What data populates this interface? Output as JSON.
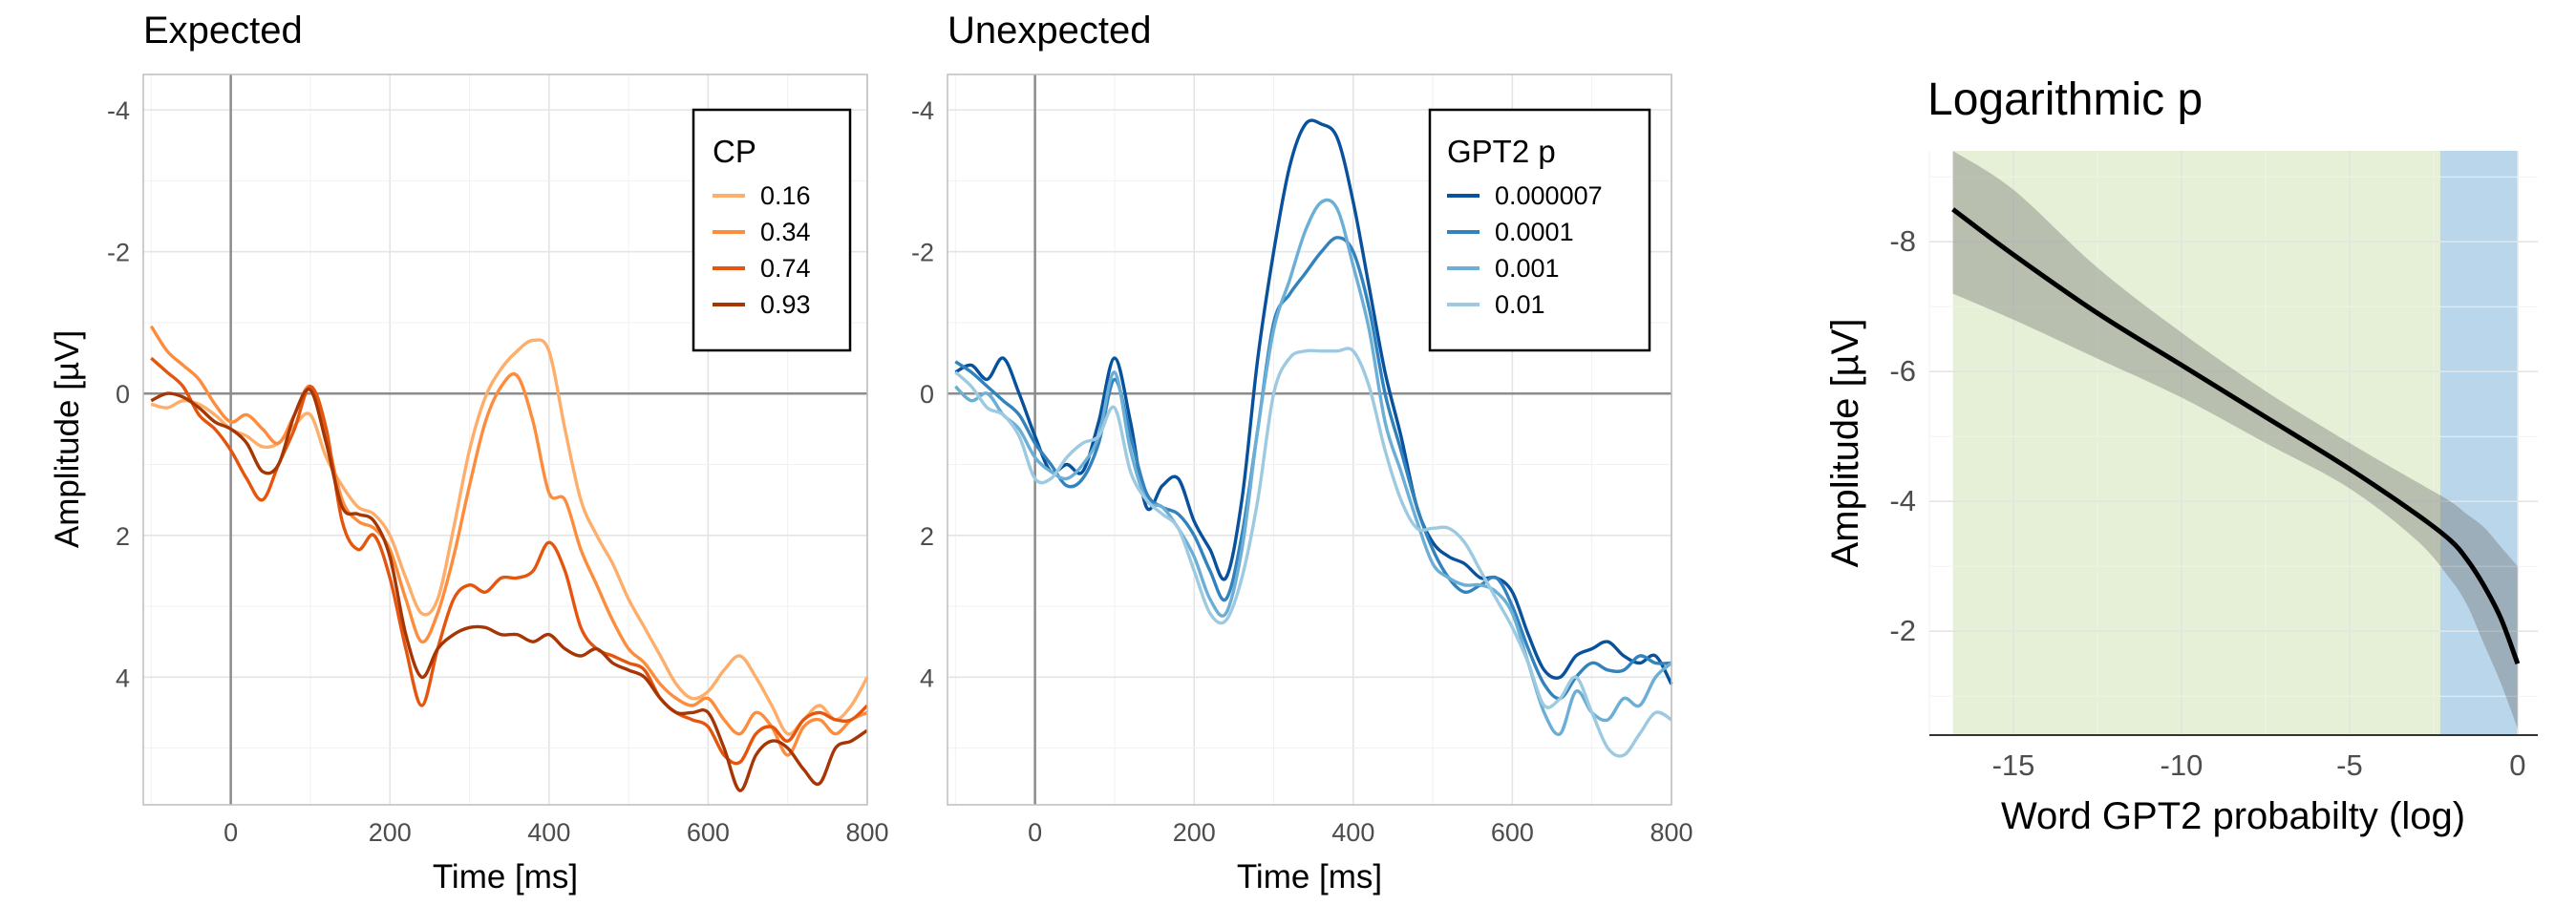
{
  "chart_data": [
    {
      "panel": "expected",
      "type": "line",
      "title": "Expected",
      "xlabel": "Time [ms]",
      "ylabel": "Amplitude [µV]",
      "xlim": [
        -110,
        800
      ],
      "ylim": [
        -4.5,
        5.8
      ],
      "y_reversed": true,
      "xticks": [
        0,
        200,
        400,
        600,
        800
      ],
      "yticks": [
        -4,
        -2,
        0,
        2,
        4
      ],
      "grid": true,
      "legend": {
        "title": "CP",
        "position": "top-right"
      },
      "series": [
        {
          "name": "0.16",
          "color": "#fdae6b",
          "x": [
            -100,
            -80,
            -60,
            -40,
            -20,
            0,
            20,
            40,
            60,
            80,
            100,
            120,
            140,
            160,
            180,
            200,
            220,
            240,
            260,
            280,
            300,
            320,
            340,
            360,
            380,
            400,
            420,
            440,
            460,
            480,
            500,
            520,
            540,
            560,
            580,
            600,
            620,
            640,
            660,
            680,
            700,
            720,
            740,
            760,
            780,
            800
          ],
          "y": [
            0.15,
            0.2,
            0.1,
            0.15,
            0.3,
            0.5,
            0.6,
            0.75,
            0.7,
            0.45,
            0.3,
            0.9,
            1.3,
            1.6,
            1.7,
            2.0,
            2.6,
            3.1,
            2.9,
            1.9,
            0.8,
            0.05,
            -0.35,
            -0.6,
            -0.75,
            -0.6,
            0.5,
            1.5,
            2.0,
            2.4,
            2.9,
            3.3,
            3.7,
            4.1,
            4.3,
            4.2,
            3.9,
            3.7,
            4.0,
            4.4,
            4.8,
            4.6,
            4.4,
            4.6,
            4.4,
            4.0
          ]
        },
        {
          "name": "0.34",
          "color": "#fd8d3c",
          "x": [
            -100,
            -80,
            -60,
            -40,
            -20,
            0,
            20,
            40,
            60,
            80,
            100,
            120,
            140,
            160,
            180,
            200,
            220,
            240,
            260,
            280,
            300,
            320,
            340,
            360,
            380,
            400,
            420,
            440,
            460,
            480,
            500,
            520,
            540,
            560,
            580,
            600,
            620,
            640,
            660,
            680,
            700,
            720,
            740,
            760,
            780,
            800
          ],
          "y": [
            -0.95,
            -0.6,
            -0.4,
            -0.2,
            0.15,
            0.4,
            0.3,
            0.5,
            0.7,
            0.3,
            -0.1,
            0.6,
            1.5,
            1.8,
            1.9,
            2.2,
            2.9,
            3.5,
            3.1,
            2.3,
            1.3,
            0.4,
            -0.1,
            -0.25,
            0.4,
            1.4,
            1.5,
            2.2,
            2.7,
            3.2,
            3.6,
            3.8,
            4.1,
            4.3,
            4.4,
            4.3,
            4.6,
            4.8,
            4.5,
            4.7,
            5.1,
            4.7,
            4.6,
            4.8,
            4.6,
            4.5
          ]
        },
        {
          "name": "0.74",
          "color": "#e6550d",
          "x": [
            -100,
            -80,
            -60,
            -40,
            -20,
            0,
            20,
            40,
            60,
            80,
            100,
            120,
            140,
            160,
            180,
            200,
            220,
            240,
            260,
            280,
            300,
            320,
            340,
            360,
            380,
            400,
            420,
            440,
            460,
            480,
            500,
            520,
            540,
            560,
            580,
            600,
            620,
            640,
            660,
            680,
            700,
            720,
            740,
            760,
            780,
            800
          ],
          "y": [
            -0.5,
            -0.3,
            -0.1,
            0.3,
            0.5,
            0.8,
            1.2,
            1.5,
            1.0,
            0.5,
            -0.1,
            0.5,
            1.8,
            2.2,
            2.0,
            2.6,
            3.6,
            4.4,
            3.6,
            2.9,
            2.7,
            2.8,
            2.6,
            2.6,
            2.5,
            2.1,
            2.5,
            3.3,
            3.6,
            3.7,
            3.8,
            3.9,
            4.3,
            4.5,
            4.6,
            4.7,
            5.1,
            5.2,
            4.8,
            4.7,
            4.9,
            4.6,
            4.5,
            4.6,
            4.6,
            4.4
          ]
        },
        {
          "name": "0.93",
          "color": "#a63603",
          "x": [
            -100,
            -80,
            -60,
            -40,
            -20,
            0,
            20,
            40,
            60,
            80,
            100,
            120,
            140,
            160,
            180,
            200,
            220,
            240,
            260,
            280,
            300,
            320,
            340,
            360,
            380,
            400,
            420,
            440,
            460,
            480,
            500,
            520,
            540,
            560,
            580,
            600,
            620,
            640,
            660,
            680,
            700,
            720,
            740,
            760,
            780,
            800
          ],
          "y": [
            0.1,
            0.0,
            0.05,
            0.2,
            0.4,
            0.5,
            0.7,
            1.1,
            1.0,
            0.3,
            -0.05,
            0.7,
            1.6,
            1.7,
            1.8,
            2.3,
            3.4,
            4.0,
            3.6,
            3.4,
            3.3,
            3.3,
            3.4,
            3.4,
            3.5,
            3.4,
            3.6,
            3.7,
            3.6,
            3.8,
            3.9,
            4.0,
            4.3,
            4.5,
            4.5,
            4.5,
            5.0,
            5.6,
            5.1,
            4.9,
            5.0,
            5.3,
            5.5,
            5.0,
            4.9,
            4.75
          ]
        }
      ]
    },
    {
      "panel": "unexpected",
      "type": "line",
      "title": "Unexpected",
      "xlabel": "Time [ms]",
      "ylabel": "",
      "xlim": [
        -110,
        800
      ],
      "ylim": [
        -4.5,
        5.8
      ],
      "y_reversed": true,
      "xticks": [
        0,
        200,
        400,
        600,
        800
      ],
      "yticks": [
        -4,
        -2,
        0,
        2,
        4
      ],
      "grid": true,
      "legend": {
        "title": "GPT2 p",
        "position": "top-right"
      },
      "series": [
        {
          "name": "0.000007",
          "color": "#08519c",
          "x": [
            -100,
            -80,
            -60,
            -40,
            -20,
            0,
            20,
            40,
            60,
            80,
            100,
            120,
            140,
            160,
            180,
            200,
            220,
            240,
            260,
            280,
            300,
            320,
            340,
            360,
            380,
            400,
            420,
            440,
            460,
            480,
            500,
            520,
            540,
            560,
            580,
            600,
            620,
            640,
            660,
            680,
            700,
            720,
            740,
            760,
            780,
            800
          ],
          "y": [
            -0.3,
            -0.4,
            -0.2,
            -0.5,
            0.0,
            0.6,
            1.1,
            1.0,
            1.1,
            0.4,
            -0.5,
            0.4,
            1.6,
            1.3,
            1.2,
            1.8,
            2.2,
            2.6,
            1.5,
            -0.5,
            -2.0,
            -3.2,
            -3.8,
            -3.8,
            -3.6,
            -2.7,
            -1.5,
            -0.3,
            0.6,
            1.6,
            2.1,
            2.3,
            2.4,
            2.6,
            2.6,
            2.8,
            3.4,
            3.9,
            4.0,
            3.7,
            3.6,
            3.5,
            3.7,
            3.8,
            3.7,
            4.1
          ]
        },
        {
          "name": "0.0001",
          "color": "#3182bd",
          "x": [
            -100,
            -80,
            -60,
            -40,
            -20,
            0,
            20,
            40,
            60,
            80,
            100,
            120,
            140,
            160,
            180,
            200,
            220,
            240,
            260,
            280,
            300,
            320,
            340,
            360,
            380,
            400,
            420,
            440,
            460,
            480,
            500,
            520,
            540,
            560,
            580,
            600,
            620,
            640,
            660,
            680,
            700,
            720,
            740,
            760,
            780,
            800
          ],
          "y": [
            -0.45,
            -0.3,
            -0.1,
            0.1,
            0.3,
            0.7,
            1.0,
            1.3,
            1.2,
            0.7,
            -0.2,
            0.6,
            1.4,
            1.6,
            1.7,
            2.0,
            2.5,
            2.9,
            2.0,
            0.5,
            -1.0,
            -1.4,
            -1.7,
            -2.0,
            -2.2,
            -2.0,
            -1.2,
            0.0,
            0.8,
            1.6,
            2.2,
            2.6,
            2.8,
            2.7,
            2.6,
            3.0,
            3.6,
            4.1,
            4.3,
            4.0,
            3.8,
            3.9,
            3.9,
            3.7,
            3.8,
            3.8
          ]
        },
        {
          "name": "0.001",
          "color": "#6baed6",
          "x": [
            -100,
            -80,
            -60,
            -40,
            -20,
            0,
            20,
            40,
            60,
            80,
            100,
            120,
            140,
            160,
            180,
            200,
            220,
            240,
            260,
            280,
            300,
            320,
            340,
            360,
            380,
            400,
            420,
            440,
            460,
            480,
            500,
            520,
            540,
            560,
            580,
            600,
            620,
            640,
            660,
            680,
            700,
            720,
            740,
            760,
            780,
            800
          ],
          "y": [
            -0.1,
            0.1,
            0.0,
            0.3,
            0.5,
            0.9,
            1.1,
            1.2,
            1.0,
            0.6,
            -0.3,
            0.8,
            1.5,
            1.6,
            1.9,
            2.3,
            2.9,
            3.1,
            2.2,
            0.5,
            -0.9,
            -1.6,
            -2.3,
            -2.7,
            -2.6,
            -1.8,
            -0.9,
            0.4,
            1.1,
            1.8,
            2.4,
            2.6,
            2.7,
            2.7,
            2.8,
            3.1,
            3.8,
            4.5,
            4.8,
            4.2,
            4.5,
            4.6,
            4.3,
            4.4,
            4.0,
            3.8
          ]
        },
        {
          "name": "0.01",
          "color": "#9ecae1",
          "x": [
            -100,
            -80,
            -60,
            -40,
            -20,
            0,
            20,
            40,
            60,
            80,
            100,
            120,
            140,
            160,
            180,
            200,
            220,
            240,
            260,
            280,
            300,
            320,
            340,
            360,
            380,
            400,
            420,
            440,
            460,
            480,
            500,
            520,
            540,
            560,
            580,
            600,
            620,
            640,
            660,
            680,
            700,
            720,
            740,
            760,
            780,
            800
          ],
          "y": [
            -0.3,
            -0.1,
            0.2,
            0.3,
            0.6,
            1.2,
            1.2,
            0.9,
            0.7,
            0.6,
            0.2,
            1.1,
            1.5,
            1.7,
            1.9,
            2.5,
            3.1,
            3.2,
            2.6,
            1.5,
            0.0,
            -0.5,
            -0.6,
            -0.6,
            -0.6,
            -0.6,
            -0.1,
            0.8,
            1.5,
            1.9,
            1.9,
            1.9,
            2.1,
            2.5,
            2.9,
            3.3,
            3.8,
            4.4,
            4.3,
            4.0,
            4.5,
            5.0,
            5.1,
            4.8,
            4.5,
            4.6
          ]
        }
      ]
    },
    {
      "panel": "logarithmic",
      "type": "line",
      "title": "Logarithmic p",
      "xlabel": "Word GPT2 probabilty (log)",
      "ylabel": "Amplitude [µV]",
      "xlim": [
        -17.5,
        0.6
      ],
      "ylim": [
        -9.4,
        -0.4
      ],
      "y_reversed": true,
      "xticks": [
        -15,
        -10,
        -5,
        0
      ],
      "yticks": [
        -8,
        -6,
        -4,
        -2
      ],
      "grid": true,
      "shaded_regions": [
        {
          "from": -16.8,
          "to": -2.3,
          "color": "#e5f0d6"
        },
        {
          "from": -2.3,
          "to": 0,
          "color": "#bad6eb"
        }
      ],
      "series": [
        {
          "name": "",
          "color": "#000000",
          "x": [
            -16.8,
            -15,
            -12.5,
            -10,
            -7.5,
            -5,
            -3,
            -2,
            -1.5,
            -1,
            -0.5,
            0
          ],
          "y": [
            -8.5,
            -7.8,
            -6.9,
            -6.1,
            -5.3,
            -4.5,
            -3.8,
            -3.4,
            -3.1,
            -2.7,
            -2.2,
            -1.5
          ],
          "ci_lower": [
            -9.4,
            -8.8,
            -7.6,
            -6.6,
            -5.7,
            -4.9,
            -4.3,
            -4.0,
            -3.8,
            -3.6,
            -3.3,
            -3.0
          ],
          "ci_upper": [
            -7.2,
            -6.8,
            -6.2,
            -5.6,
            -4.9,
            -4.2,
            -3.4,
            -2.8,
            -2.4,
            -1.8,
            -1.2,
            -0.5
          ]
        }
      ]
    }
  ]
}
